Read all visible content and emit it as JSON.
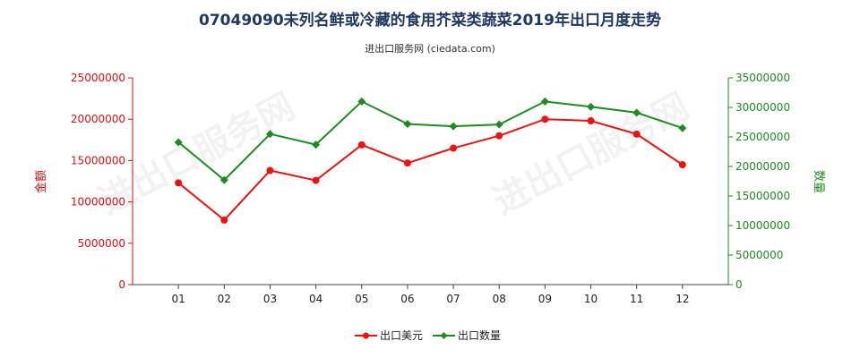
{
  "chart_data": {
    "type": "line",
    "title": "07049090未列名鲜或冷藏的食用芥菜类蔬菜2019年出口月度走势",
    "subtitle": "进出口服务网 (ciedata.com)",
    "categories": [
      "01",
      "02",
      "03",
      "04",
      "05",
      "06",
      "07",
      "08",
      "09",
      "10",
      "11",
      "12"
    ],
    "y_left_label": "金额",
    "y_right_label": "数量",
    "y_left_lim": [
      0,
      25000000
    ],
    "y_right_lim": [
      0,
      35000000
    ],
    "y_left_ticks": [
      "0",
      "5000000",
      "10000000",
      "15000000",
      "20000000",
      "25000000"
    ],
    "y_right_ticks": [
      "0",
      "5000000",
      "10000000",
      "15000000",
      "20000000",
      "25000000",
      "30000000",
      "35000000"
    ],
    "series": [
      {
        "name": "出口美元",
        "axis": "left",
        "color": "#ee1111",
        "marker": "circle",
        "values": [
          12300000,
          7800000,
          13800000,
          12600000,
          16900000,
          14700000,
          16500000,
          18000000,
          20000000,
          19800000,
          18200000,
          14500000
        ]
      },
      {
        "name": "出口数量",
        "axis": "right",
        "color": "#1e8b1e",
        "marker": "diamond",
        "values": [
          24100000,
          17700000,
          25500000,
          23700000,
          31000000,
          27200000,
          26800000,
          27100000,
          31000000,
          30100000,
          29100000,
          26500000
        ]
      }
    ],
    "legend_position": "bottom-center",
    "grid": false
  },
  "watermark": "进出口服务网"
}
